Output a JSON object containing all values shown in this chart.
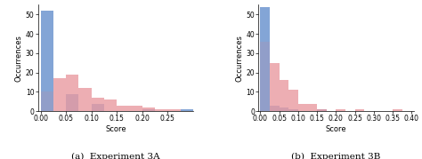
{
  "exp3A": {
    "title": "(a)  Experiment 3A",
    "blue_bins": [
      0.0,
      0.025,
      0.05,
      0.075,
      0.1,
      0.125,
      0.15,
      0.175,
      0.2,
      0.225,
      0.25,
      0.275
    ],
    "blue_vals": [
      52,
      0,
      9,
      0,
      4,
      0,
      0,
      0,
      1,
      0,
      0,
      1
    ],
    "red_bins": [
      0.0,
      0.025,
      0.05,
      0.075,
      0.1,
      0.125,
      0.15,
      0.175,
      0.2,
      0.225,
      0.25
    ],
    "red_vals": [
      10,
      17,
      19,
      12,
      7,
      6,
      3,
      3,
      2,
      1,
      1
    ],
    "xlim": [
      -0.005,
      0.3
    ],
    "xticks": [
      0.0,
      0.05,
      0.1,
      0.15,
      0.2,
      0.25
    ],
    "ylim": [
      0,
      55
    ],
    "yticks": [
      0,
      10,
      20,
      30,
      40,
      50
    ],
    "xlabel": "Score",
    "ylabel": "Occurrences",
    "bin_width": 0.025
  },
  "exp3B": {
    "title": "(b)  Experiment 3B",
    "blue_bins": [
      0.0,
      0.025,
      0.05,
      0.075,
      0.1,
      0.125,
      0.15
    ],
    "blue_vals": [
      54,
      3,
      2,
      1,
      0,
      0,
      1
    ],
    "red_bins": [
      0.0,
      0.025,
      0.05,
      0.075,
      0.1,
      0.125,
      0.15,
      0.175,
      0.2,
      0.225,
      0.25,
      0.275,
      0.3,
      0.325,
      0.35,
      0.375
    ],
    "red_vals": [
      36,
      25,
      16,
      11,
      4,
      4,
      1,
      0,
      1,
      0,
      1,
      0,
      0,
      0,
      1,
      0
    ],
    "xlim": [
      -0.005,
      0.405
    ],
    "xticks": [
      0.0,
      0.05,
      0.1,
      0.15,
      0.2,
      0.25,
      0.3,
      0.35,
      0.4
    ],
    "ylim": [
      0,
      55
    ],
    "yticks": [
      0,
      10,
      20,
      30,
      40,
      50
    ],
    "xlabel": "Score",
    "ylabel": "Occurrences",
    "bin_width": 0.025
  },
  "blue_color": "#7b9fd4",
  "red_color": "#e8939a",
  "blue_alpha": 0.75,
  "red_alpha": 0.75,
  "label_fontsize": 6,
  "tick_fontsize": 5.5,
  "title_fontsize": 7.5
}
